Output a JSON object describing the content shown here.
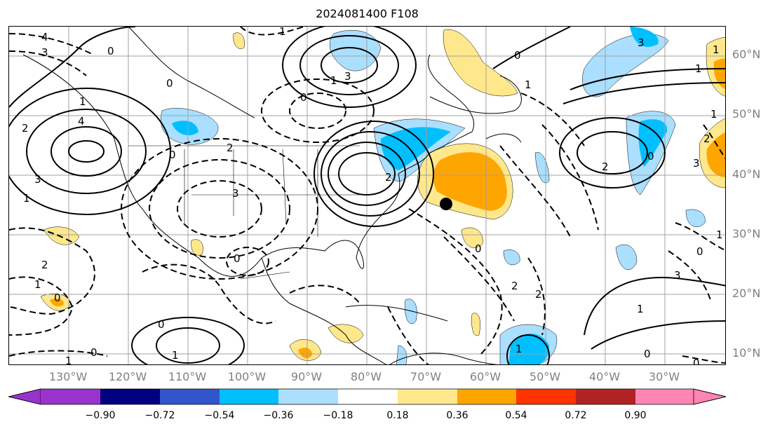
{
  "title": "2024081400 F108",
  "latitude_labels": [
    "60°N",
    "50°N",
    "40°N",
    "30°N",
    "20°N",
    "10°N"
  ],
  "longitude_labels": [
    "130°W",
    "120°W",
    "110°W",
    "100°W",
    "90°W",
    "80°W",
    "70°W",
    "60°W",
    "50°W",
    "40°W",
    "30°W"
  ],
  "colorbar": {
    "ticks": [
      "−0.90",
      "−0.72",
      "−0.54",
      "−0.36",
      "−0.18",
      "0.18",
      "0.36",
      "0.54",
      "0.72",
      "0.90"
    ],
    "colors": [
      "#9933cc",
      "#000080",
      "#3355cc",
      "#00bfff",
      "#aadfff",
      "#ffffff",
      "#ffe88c",
      "#ffa500",
      "#ff3300",
      "#b22222",
      "#ff85b3"
    ]
  },
  "contour_labels": [
    "4",
    "3",
    "0",
    "1",
    "2",
    "4",
    "3",
    "1",
    "0",
    "2",
    "3",
    "0",
    "1",
    "3",
    "0",
    "1",
    "2",
    "3",
    "1",
    "0",
    "2",
    "1",
    "0",
    "0",
    "1",
    "0",
    "1",
    "0",
    "3",
    "1",
    "2",
    "3",
    "1",
    "0",
    "1",
    "2",
    "1",
    "0",
    "2",
    "2",
    "0",
    "1",
    "0",
    "1",
    "0"
  ],
  "marker": "storm-position-dot"
}
